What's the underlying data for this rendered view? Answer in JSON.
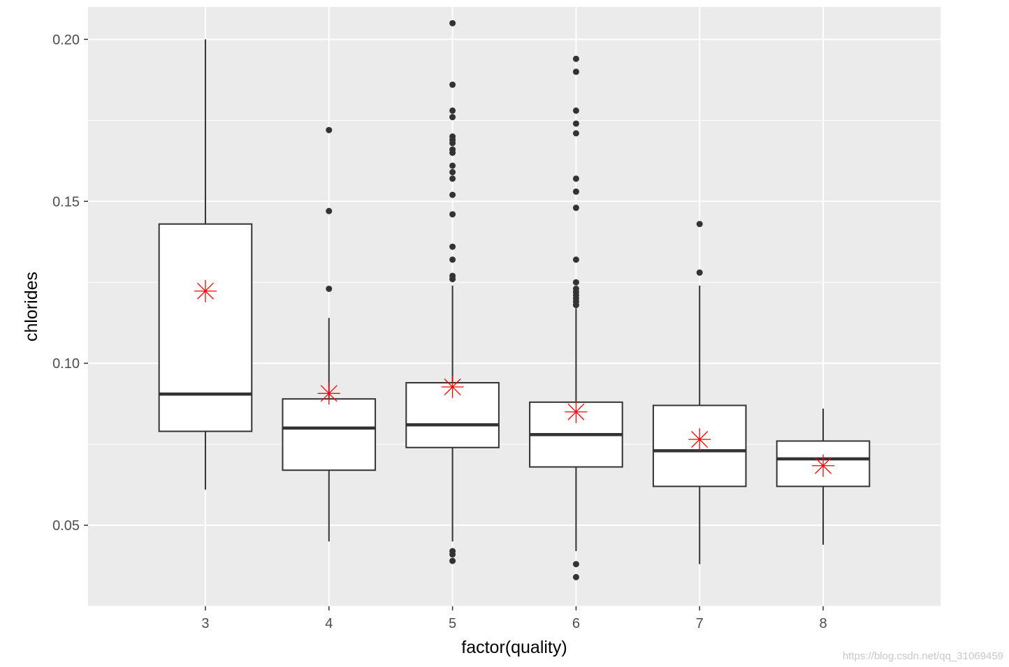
{
  "chart_data": {
    "type": "boxplot",
    "xlabel": "factor(quality)",
    "ylabel": "chlorides",
    "ylim": [
      0.025,
      0.21
    ],
    "y_ticks": [
      0.05,
      0.1,
      0.15,
      0.2
    ],
    "y_tick_labels": [
      "0.05",
      "0.10",
      "0.15",
      "0.20"
    ],
    "grid": true,
    "colors": {
      "panel_background": "#ebebeb",
      "grid_line": "#ffffff",
      "box_fill": "#ffffff",
      "box_stroke": "#333333",
      "outlier": "#333333",
      "mean_marker": "#ff0000"
    },
    "categories": [
      "3",
      "4",
      "5",
      "6",
      "7",
      "8"
    ],
    "boxes": [
      {
        "category": "3",
        "lower_whisker": 0.061,
        "q1": 0.079,
        "median": 0.0905,
        "q3": 0.143,
        "upper_whisker": 0.2,
        "mean": 0.1223,
        "outliers": []
      },
      {
        "category": "4",
        "lower_whisker": 0.045,
        "q1": 0.067,
        "median": 0.08,
        "q3": 0.089,
        "upper_whisker": 0.114,
        "mean": 0.0907,
        "outliers": [
          0.123,
          0.147,
          0.172
        ]
      },
      {
        "category": "5",
        "lower_whisker": 0.045,
        "q1": 0.074,
        "median": 0.081,
        "q3": 0.094,
        "upper_whisker": 0.124,
        "mean": 0.0927,
        "outliers": [
          0.039,
          0.041,
          0.042,
          0.126,
          0.127,
          0.132,
          0.136,
          0.146,
          0.152,
          0.157,
          0.159,
          0.161,
          0.165,
          0.166,
          0.168,
          0.169,
          0.17,
          0.176,
          0.178,
          0.186,
          0.205
        ]
      },
      {
        "category": "6",
        "lower_whisker": 0.042,
        "q1": 0.068,
        "median": 0.078,
        "q3": 0.088,
        "upper_whisker": 0.117,
        "mean": 0.085,
        "outliers": [
          0.034,
          0.038,
          0.118,
          0.119,
          0.12,
          0.121,
          0.122,
          0.123,
          0.125,
          0.132,
          0.148,
          0.153,
          0.157,
          0.171,
          0.174,
          0.178,
          0.19,
          0.194
        ]
      },
      {
        "category": "7",
        "lower_whisker": 0.038,
        "q1": 0.062,
        "median": 0.073,
        "q3": 0.087,
        "upper_whisker": 0.124,
        "mean": 0.0765,
        "outliers": [
          0.128,
          0.143
        ]
      },
      {
        "category": "8",
        "lower_whisker": 0.044,
        "q1": 0.062,
        "median": 0.0705,
        "q3": 0.076,
        "upper_whisker": 0.086,
        "mean": 0.0684,
        "outliers": []
      }
    ]
  },
  "watermark": "https://blog.csdn.net/qq_31069459"
}
